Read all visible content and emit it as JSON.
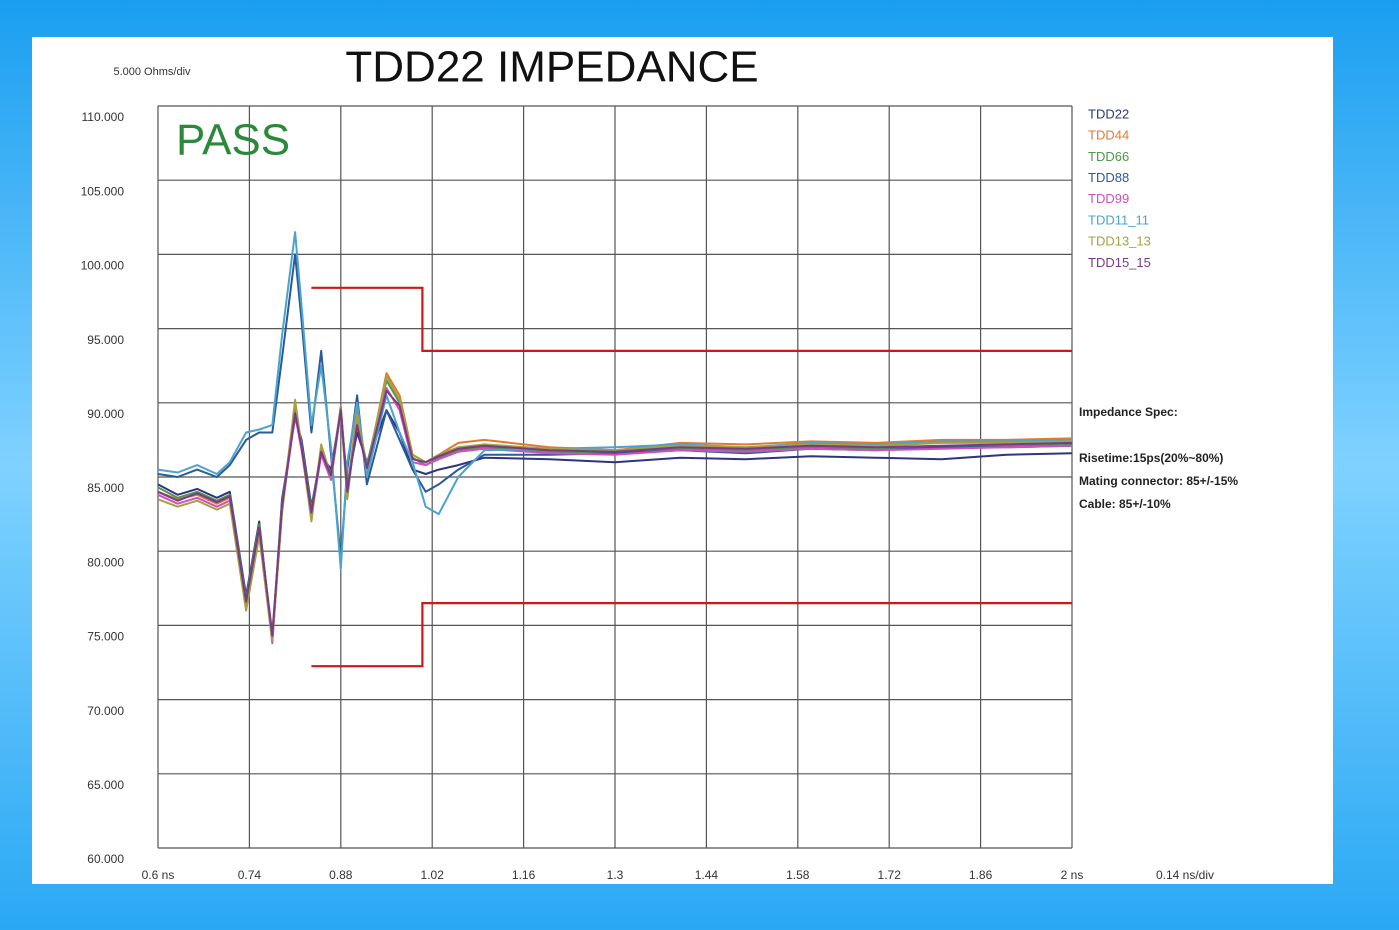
{
  "chart_data": {
    "type": "line",
    "title": "TDD22 IMPEDANCE",
    "pass_label": "PASS",
    "pass_color": "#2a8a3a",
    "y_scale_label": "5.000 Ohms/div",
    "x_scale_label": "0.14 ns/div",
    "spec_notes": [
      "Impedance Spec:",
      "Risetime:15ps(20%~80%)",
      "Mating connector: 85+/-15%",
      "Cable: 85+/-10%"
    ],
    "grid": true,
    "xlim": [
      0.6,
      2
    ],
    "ylim": [
      60,
      110
    ],
    "xticks": [
      {
        "value": 0.6,
        "label": "0.6 ns"
      },
      0.74,
      0.88,
      1.02,
      1.16,
      1.3,
      1.44,
      1.58,
      1.72,
      1.86,
      {
        "value": 2,
        "label": "2 ns"
      }
    ],
    "yticks": [
      {
        "value": 60,
        "label": "60.000"
      },
      {
        "value": 65,
        "label": "65.000"
      },
      {
        "value": 70,
        "label": "70.000"
      },
      {
        "value": 75,
        "label": "75.000"
      },
      {
        "value": 80,
        "label": "80.000"
      },
      {
        "value": 85,
        "label": "85.000"
      },
      {
        "value": 90,
        "label": "90.000"
      },
      {
        "value": 95,
        "label": "95.000"
      },
      {
        "value": 100,
        "label": "100.000"
      },
      {
        "value": 105,
        "label": "105.000"
      },
      {
        "value": 110,
        "label": "110.000"
      }
    ],
    "x": [
      0.6,
      0.63,
      0.66,
      0.69,
      0.71,
      0.735,
      0.755,
      0.775,
      0.79,
      0.81,
      0.82,
      0.835,
      0.85,
      0.865,
      0.88,
      0.89,
      0.905,
      0.92,
      0.95,
      0.97,
      0.99,
      1.01,
      1.03,
      1.06,
      1.1,
      1.2,
      1.3,
      1.4,
      1.5,
      1.6,
      1.7,
      1.8,
      1.9,
      2.0
    ],
    "series": [
      {
        "name": "TDD22",
        "color": "#2e3480",
        "values": [
          84.5,
          83.8,
          84.2,
          83.6,
          84.0,
          77.0,
          82.0,
          74.0,
          83.5,
          89.0,
          87.5,
          83.0,
          86.5,
          85.5,
          89.5,
          84.5,
          88.0,
          86.0,
          89.5,
          88.0,
          85.5,
          85.2,
          85.5,
          85.8,
          86.3,
          86.2,
          86.0,
          86.3,
          86.2,
          86.4,
          86.3,
          86.2,
          86.5,
          86.6
        ]
      },
      {
        "name": "TDD44",
        "color": "#e07a30",
        "values": [
          84.0,
          83.5,
          83.8,
          83.2,
          83.6,
          76.5,
          81.5,
          74.5,
          83.0,
          90.0,
          87.0,
          82.5,
          87.0,
          85.0,
          89.8,
          84.0,
          89.5,
          85.5,
          92.0,
          90.5,
          86.5,
          86.0,
          86.5,
          87.3,
          87.5,
          87.0,
          86.8,
          87.3,
          87.2,
          87.4,
          87.3,
          87.5,
          87.5,
          87.6
        ]
      },
      {
        "name": "TDD66",
        "color": "#4a9a4a",
        "values": [
          84.3,
          83.6,
          84.0,
          83.4,
          83.8,
          76.8,
          81.8,
          74.2,
          83.2,
          89.5,
          87.2,
          82.8,
          86.8,
          85.2,
          89.6,
          84.2,
          89.0,
          85.8,
          91.5,
          90.0,
          86.3,
          85.8,
          86.3,
          86.8,
          87.0,
          86.7,
          86.6,
          86.9,
          86.8,
          87.0,
          86.9,
          87.0,
          87.1,
          87.2
        ]
      },
      {
        "name": "TDD88",
        "color": "#2a5a9a",
        "values": [
          85.2,
          85.0,
          85.5,
          85.0,
          85.8,
          87.5,
          88.0,
          88.0,
          93.0,
          100.0,
          95.5,
          88.0,
          93.5,
          86.5,
          79.5,
          85.5,
          90.5,
          84.5,
          89.5,
          87.5,
          85.5,
          84.0,
          84.5,
          85.5,
          86.5,
          86.5,
          86.6,
          86.8,
          86.6,
          86.9,
          86.8,
          87.0,
          87.0,
          87.1
        ]
      },
      {
        "name": "TDD99",
        "color": "#d050c0",
        "values": [
          83.8,
          83.2,
          83.6,
          83.0,
          83.4,
          76.3,
          81.3,
          73.8,
          82.8,
          89.2,
          86.8,
          82.3,
          86.5,
          84.8,
          89.4,
          83.8,
          88.8,
          85.3,
          91.0,
          89.5,
          86.0,
          85.8,
          86.2,
          86.7,
          86.9,
          86.6,
          86.5,
          86.8,
          86.7,
          86.9,
          86.8,
          86.9,
          87.0,
          87.1
        ]
      },
      {
        "name": "TDD11_11",
        "color": "#4aa4cc",
        "values": [
          85.5,
          85.3,
          85.8,
          85.2,
          86.0,
          88.0,
          88.2,
          88.5,
          94.5,
          101.5,
          96.5,
          88.5,
          92.5,
          87.0,
          78.8,
          86.0,
          90.0,
          85.0,
          90.5,
          88.0,
          86.0,
          83.0,
          82.5,
          85.0,
          86.8,
          86.9,
          87.0,
          87.2,
          87.0,
          87.3,
          87.2,
          87.4,
          87.4,
          87.5
        ]
      },
      {
        "name": "TDD13_13",
        "color": "#a8a040",
        "values": [
          83.5,
          83.0,
          83.4,
          82.8,
          83.2,
          76.0,
          81.0,
          74.0,
          82.5,
          90.2,
          87.0,
          82.0,
          87.2,
          85.0,
          89.5,
          83.5,
          89.2,
          85.5,
          91.8,
          90.2,
          86.5,
          86.0,
          86.5,
          87.0,
          87.2,
          86.9,
          86.8,
          87.1,
          87.0,
          87.2,
          87.1,
          87.3,
          87.3,
          87.4
        ]
      },
      {
        "name": "TDD15_15",
        "color": "#7a3a8a",
        "values": [
          84.0,
          83.4,
          83.9,
          83.3,
          83.7,
          76.6,
          81.6,
          74.3,
          83.0,
          89.3,
          87.0,
          82.6,
          86.7,
          85.1,
          89.5,
          84.0,
          88.5,
          85.6,
          90.8,
          89.8,
          86.2,
          86.0,
          86.4,
          86.9,
          87.1,
          86.8,
          86.7,
          87.0,
          86.9,
          87.1,
          87.0,
          87.1,
          87.2,
          87.3
        ]
      }
    ],
    "limit_lines": [
      {
        "color": "#cc1818",
        "x": [
          0.835,
          1.005,
          1.005,
          2
        ],
        "values": [
          97.75,
          97.75,
          93.5,
          93.5
        ]
      },
      {
        "color": "#cc1818",
        "x": [
          0.835,
          1.005,
          1.005,
          2
        ],
        "values": [
          72.25,
          72.25,
          76.5,
          76.5
        ]
      }
    ]
  }
}
